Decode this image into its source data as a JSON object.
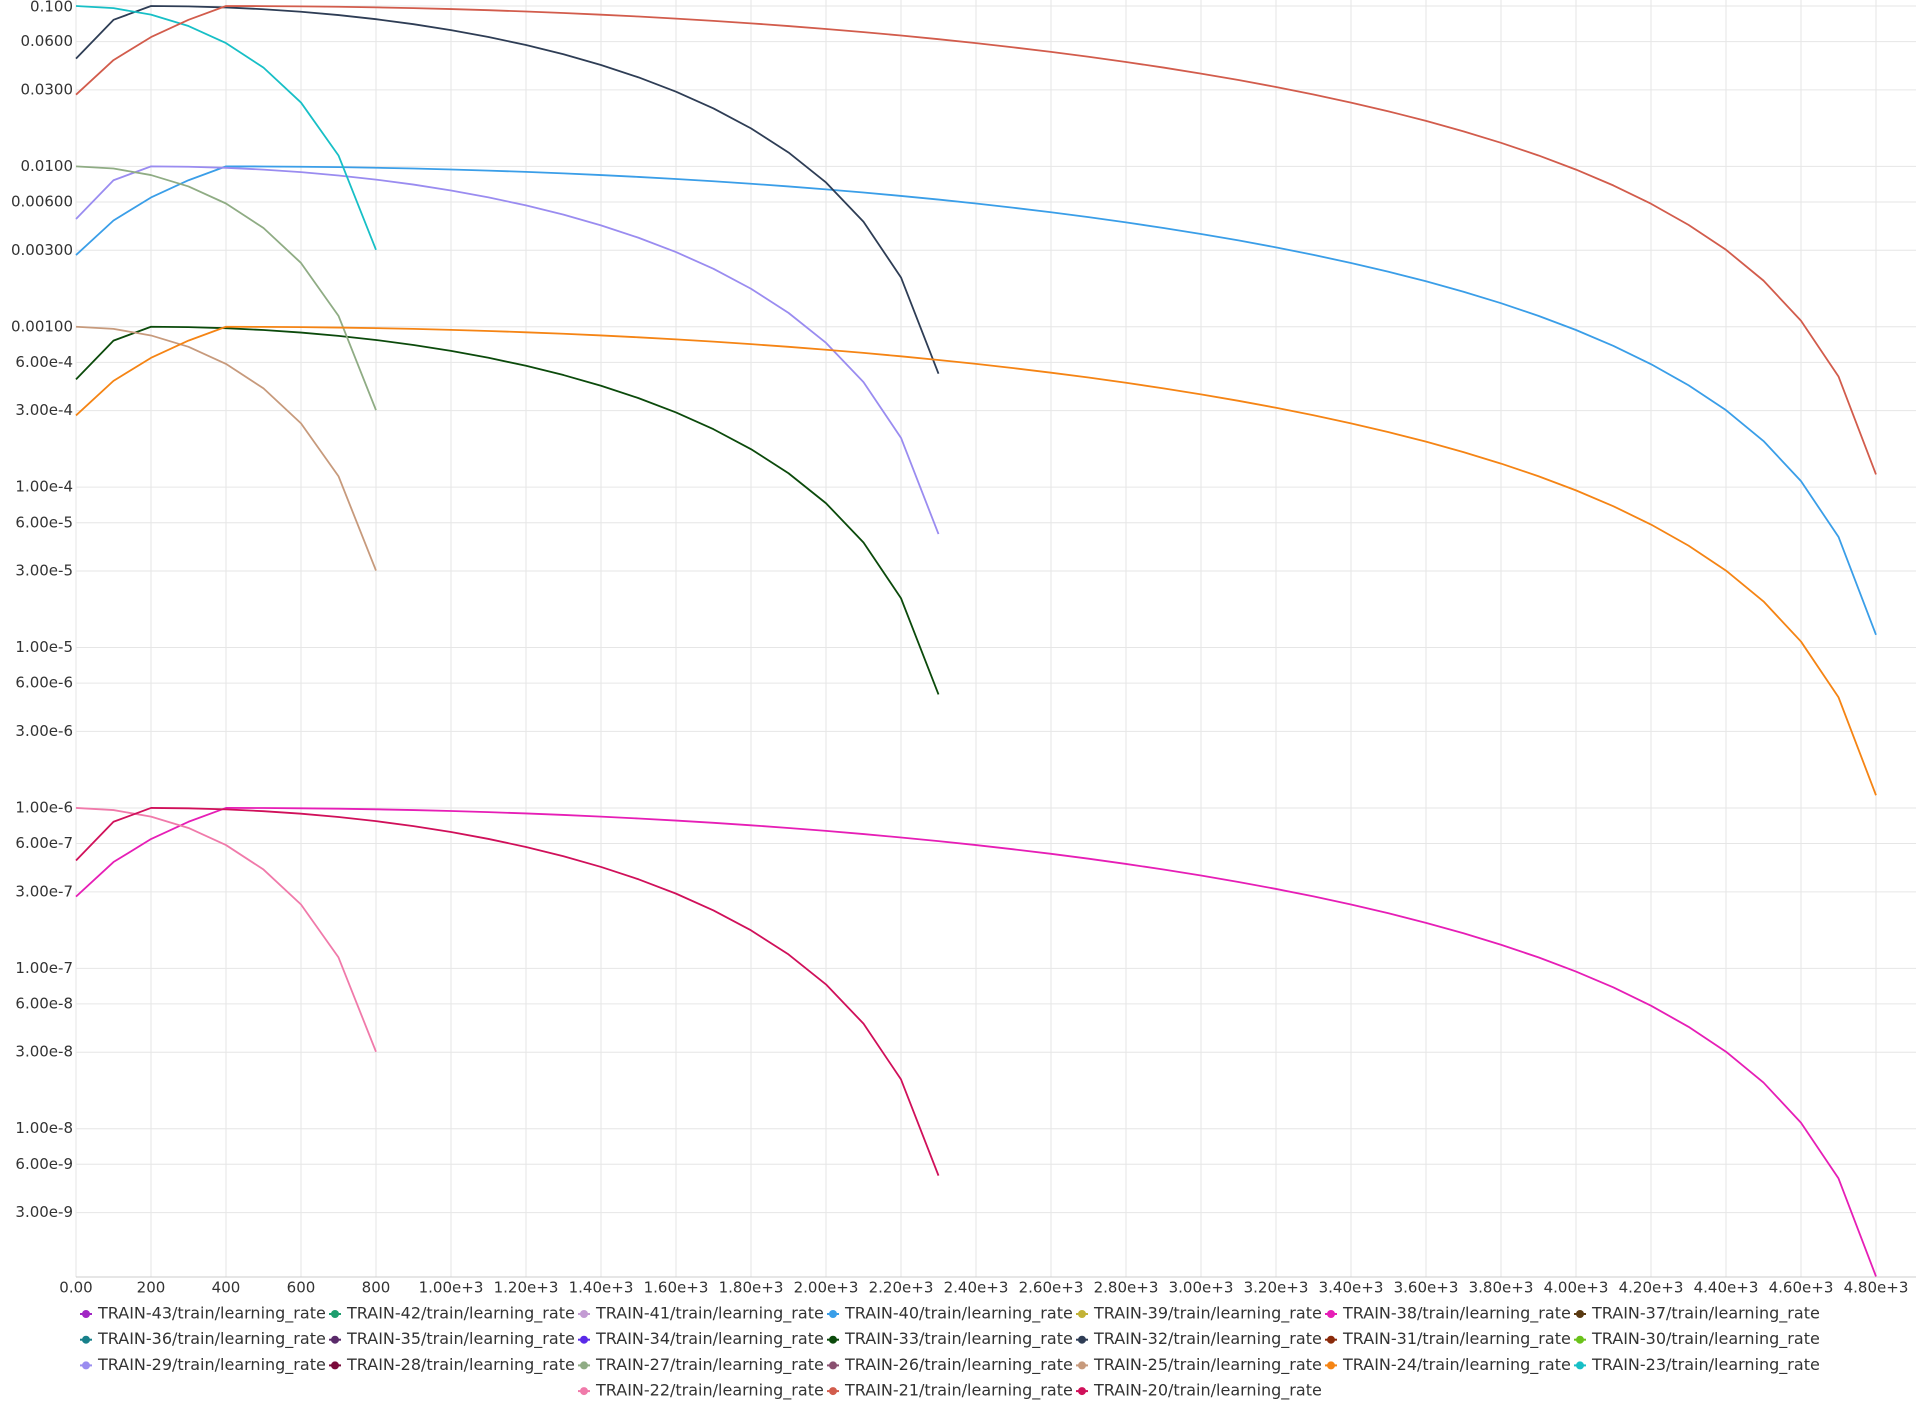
{
  "chart_data": {
    "type": "line",
    "log_y": true,
    "grid": true,
    "legend_position": "bottom",
    "xlim": [
      0,
      4800
    ],
    "ylim": [
      1.19e-09,
      0.109
    ],
    "xticks": [
      {
        "value": 0,
        "label": "0.00"
      },
      200,
      400,
      600,
      800,
      {
        "value": 1000,
        "label": "1.00e+3"
      },
      {
        "value": 1200,
        "label": "1.20e+3"
      },
      {
        "value": 1400,
        "label": "1.40e+3"
      },
      {
        "value": 1600,
        "label": "1.60e+3"
      },
      {
        "value": 1800,
        "label": "1.80e+3"
      },
      {
        "value": 2000,
        "label": "2.00e+3"
      },
      {
        "value": 2200,
        "label": "2.20e+3"
      },
      {
        "value": 2400,
        "label": "2.40e+3"
      },
      {
        "value": 2600,
        "label": "2.60e+3"
      },
      {
        "value": 2800,
        "label": "2.80e+3"
      },
      {
        "value": 3000,
        "label": "3.00e+3"
      },
      {
        "value": 3200,
        "label": "3.20e+3"
      },
      {
        "value": 3400,
        "label": "3.40e+3"
      },
      {
        "value": 3600,
        "label": "3.60e+3"
      },
      {
        "value": 3800,
        "label": "3.80e+3"
      },
      {
        "value": 4000,
        "label": "4.00e+3"
      },
      {
        "value": 4200,
        "label": "4.20e+3"
      },
      {
        "value": 4400,
        "label": "4.40e+3"
      },
      {
        "value": 4600,
        "label": "4.60e+3"
      },
      {
        "value": 4800,
        "label": "4.80e+3"
      }
    ],
    "yticks": [
      {
        "value": 0.1,
        "label": "0.100"
      },
      {
        "value": 0.06,
        "label": "0.0600"
      },
      {
        "value": 0.03,
        "label": "0.0300"
      },
      {
        "value": 0.01,
        "label": "0.0100"
      },
      {
        "value": 0.006,
        "label": "0.00600"
      },
      {
        "value": 0.003,
        "label": "0.00300"
      },
      {
        "value": 0.001,
        "label": "0.00100"
      },
      {
        "value": 0.0006,
        "label": "6.00e-4"
      },
      {
        "value": 0.0003,
        "label": "3.00e-4"
      },
      {
        "value": 0.0001,
        "label": "1.00e-4"
      },
      {
        "value": 6e-05,
        "label": "6.00e-5"
      },
      {
        "value": 3e-05,
        "label": "3.00e-5"
      },
      {
        "value": 1e-05,
        "label": "1.00e-5"
      },
      {
        "value": 6e-06,
        "label": "6.00e-6"
      },
      {
        "value": 3e-06,
        "label": "3.00e-6"
      },
      {
        "value": 1e-06,
        "label": "1.00e-6"
      },
      {
        "value": 6e-07,
        "label": "6.00e-7"
      },
      {
        "value": 3e-07,
        "label": "3.00e-7"
      },
      {
        "value": 1e-07,
        "label": "1.00e-7"
      },
      {
        "value": 6e-08,
        "label": "6.00e-8"
      },
      {
        "value": 3e-08,
        "label": "3.00e-8"
      },
      {
        "value": 1e-08,
        "label": "1.00e-8"
      },
      {
        "value": 6e-09,
        "label": "6.00e-9"
      },
      {
        "value": 3e-09,
        "label": "3.00e-9"
      }
    ],
    "series": [
      {
        "name": "TRAIN-43/train/learning_rate",
        "color": "#a126c4",
        "x": [],
        "values": []
      },
      {
        "name": "TRAIN-42/train/learning_rate",
        "color": "#1e9e6e",
        "x": [],
        "values": []
      },
      {
        "name": "TRAIN-41/train/learning_rate",
        "color": "#c39bd3",
        "x": [],
        "values": []
      },
      {
        "name": "TRAIN-40/train/learning_rate",
        "color": "#3a9ee8",
        "x": [
          0,
          100,
          200,
          300,
          400,
          500,
          600,
          700,
          800,
          900,
          1000,
          1100,
          1200,
          1300,
          1400,
          1500,
          1600,
          1700,
          1800,
          1900,
          2000,
          2100,
          2200,
          2300,
          2400,
          2500,
          2600,
          2700,
          2800,
          2900,
          3000,
          3100,
          3200,
          3300,
          3400,
          3500,
          3600,
          3700,
          3800,
          3900,
          4000,
          4100,
          4200,
          4300,
          4400,
          4500,
          4600,
          4700,
          4800
        ],
        "values": [
          0.0028,
          0.0046,
          0.0064,
          0.0082,
          0.01,
          0.009988,
          0.009951,
          0.009891,
          0.009806,
          0.009699,
          0.009568,
          0.009415,
          0.00924,
          0.009045,
          0.00883,
          0.008597,
          0.008346,
          0.008078,
          0.007796,
          0.0075,
          0.007192,
          0.006873,
          0.006545,
          0.00621,
          0.005868,
          0.005523,
          0.005175,
          0.004826,
          0.004477,
          0.004132,
          0.00379,
          0.003455,
          0.003127,
          0.002808,
          0.0025,
          0.002204,
          0.001922,
          0.001654,
          0.001403,
          0.00117,
          0.000955,
          0.00076,
          0.000585,
          0.000432,
          0.000302,
          0.000194,
          0.000109,
          4.9e-05,
          1.2e-05
        ]
      },
      {
        "name": "TRAIN-39/train/learning_rate",
        "color": "#c2b236",
        "x": [],
        "values": []
      },
      {
        "name": "TRAIN-38/train/learning_rate",
        "color": "#e61eb6",
        "x": [
          0,
          100,
          200,
          300,
          400,
          500,
          600,
          700,
          800,
          900,
          1000,
          1100,
          1200,
          1300,
          1400,
          1500,
          1600,
          1700,
          1800,
          1900,
          2000,
          2100,
          2200,
          2300,
          2400,
          2500,
          2600,
          2700,
          2800,
          2900,
          3000,
          3100,
          3200,
          3300,
          3400,
          3500,
          3600,
          3700,
          3800,
          3900,
          4000,
          4100,
          4200,
          4300,
          4400,
          4500,
          4600,
          4700,
          4800
        ],
        "values": [
          2.8e-07,
          4.6e-07,
          6.4e-07,
          8.2e-07,
          1e-06,
          9.988e-07,
          9.951e-07,
          9.891e-07,
          9.806e-07,
          9.699e-07,
          9.568e-07,
          9.415e-07,
          9.24e-07,
          9.045e-07,
          8.83e-07,
          8.597e-07,
          8.346e-07,
          8.078e-07,
          7.796e-07,
          7.5e-07,
          7.192e-07,
          6.873e-07,
          6.545e-07,
          6.21e-07,
          5.868e-07,
          5.523e-07,
          5.175e-07,
          4.826e-07,
          4.477e-07,
          4.132e-07,
          3.79e-07,
          3.455e-07,
          3.127e-07,
          2.808e-07,
          2.5e-07,
          2.204e-07,
          1.922e-07,
          1.654e-07,
          1.403e-07,
          1.17e-07,
          9.55e-08,
          7.6e-08,
          5.85e-08,
          4.32e-08,
          3.02e-08,
          1.94e-08,
          1.09e-08,
          4.9e-09,
          1.2e-09
        ]
      },
      {
        "name": "TRAIN-37/train/learning_rate",
        "color": "#5a3a12",
        "x": [],
        "values": []
      },
      {
        "name": "TRAIN-36/train/learning_rate",
        "color": "#17808a",
        "x": [],
        "values": []
      },
      {
        "name": "TRAIN-35/train/learning_rate",
        "color": "#5a2a6a",
        "x": [],
        "values": []
      },
      {
        "name": "TRAIN-34/train/learning_rate",
        "color": "#5a2ae8",
        "x": [],
        "values": []
      },
      {
        "name": "TRAIN-33/train/learning_rate",
        "color": "#0b4a0b",
        "x": [
          0,
          100,
          200,
          300,
          400,
          500,
          600,
          700,
          800,
          900,
          1000,
          1100,
          1200,
          1300,
          1400,
          1500,
          1600,
          1700,
          1800,
          1900,
          2000,
          2100,
          2200,
          2300
        ],
        "values": [
          0.00047,
          0.00082,
          0.001,
          0.0009949,
          0.0009797,
          0.0009548,
          0.0009206,
          0.0008779,
          0.0008274,
          0.0007703,
          0.0007077,
          0.0006409,
          0.0005712,
          0.0005,
          0.0004288,
          0.0003591,
          0.0002923,
          0.0002297,
          0.0001726,
          0.0001221,
          7.94e-05,
          4.52e-05,
          2.03e-05,
          5.1e-06
        ]
      },
      {
        "name": "TRAIN-32/train/learning_rate",
        "color": "#2e3d55",
        "x": [
          0,
          100,
          200,
          300,
          400,
          500,
          600,
          700,
          800,
          900,
          1000,
          1100,
          1200,
          1300,
          1400,
          1500,
          1600,
          1700,
          1800,
          1900,
          2000,
          2100,
          2200,
          2300
        ],
        "values": [
          0.047,
          0.082,
          0.1,
          0.09949,
          0.09797,
          0.09548,
          0.09206,
          0.08779,
          0.08274,
          0.07703,
          0.07077,
          0.06409,
          0.05712,
          0.05,
          0.04288,
          0.03591,
          0.02923,
          0.02297,
          0.01726,
          0.01221,
          0.00794,
          0.00452,
          0.00203,
          0.00051
        ]
      },
      {
        "name": "TRAIN-31/train/learning_rate",
        "color": "#8a2a0a",
        "x": [],
        "values": []
      },
      {
        "name": "TRAIN-30/train/learning_rate",
        "color": "#6ac21a",
        "x": [],
        "values": []
      },
      {
        "name": "TRAIN-29/train/learning_rate",
        "color": "#9a8cf0",
        "x": [
          0,
          100,
          200,
          300,
          400,
          500,
          600,
          700,
          800,
          900,
          1000,
          1100,
          1200,
          1300,
          1400,
          1500,
          1600,
          1700,
          1800,
          1900,
          2000,
          2100,
          2200,
          2300
        ],
        "values": [
          0.0047,
          0.0082,
          0.01,
          0.009949,
          0.009797,
          0.009548,
          0.009206,
          0.008779,
          0.008274,
          0.007703,
          0.007077,
          0.006409,
          0.005712,
          0.005,
          0.004288,
          0.003591,
          0.002923,
          0.002297,
          0.001726,
          0.001221,
          0.000794,
          0.000452,
          0.000203,
          5.1e-05
        ]
      },
      {
        "name": "TRAIN-28/train/learning_rate",
        "color": "#7a0a3a",
        "x": [],
        "values": []
      },
      {
        "name": "TRAIN-27/train/learning_rate",
        "color": "#8fac84",
        "x": [
          0,
          100,
          200,
          300,
          400,
          500,
          600,
          700,
          800
        ],
        "values": [
          0.01,
          0.0097,
          0.00883,
          0.0075,
          0.00587,
          0.00413,
          0.0025,
          0.00117,
          0.000302
        ]
      },
      {
        "name": "TRAIN-26/train/learning_rate",
        "color": "#8a5070",
        "x": [],
        "values": []
      },
      {
        "name": "TRAIN-25/train/learning_rate",
        "color": "#c79a7c",
        "x": [
          0,
          100,
          200,
          300,
          400,
          500,
          600,
          700,
          800
        ],
        "values": [
          0.001,
          0.00097,
          0.000883,
          0.00075,
          0.000587,
          0.000413,
          0.00025,
          0.000117,
          3.02e-05
        ]
      },
      {
        "name": "TRAIN-24/train/learning_rate",
        "color": "#f58414",
        "x": [
          0,
          100,
          200,
          300,
          400,
          500,
          600,
          700,
          800,
          900,
          1000,
          1100,
          1200,
          1300,
          1400,
          1500,
          1600,
          1700,
          1800,
          1900,
          2000,
          2100,
          2200,
          2300,
          2400,
          2500,
          2600,
          2700,
          2800,
          2900,
          3000,
          3100,
          3200,
          3300,
          3400,
          3500,
          3600,
          3700,
          3800,
          3900,
          4000,
          4100,
          4200,
          4300,
          4400,
          4500,
          4600,
          4700,
          4800
        ],
        "values": [
          0.00028,
          0.00046,
          0.00064,
          0.00082,
          0.001,
          0.0009988,
          0.0009951,
          0.0009891,
          0.0009806,
          0.0009699,
          0.0009568,
          0.0009415,
          0.000924,
          0.0009045,
          0.000883,
          0.0008597,
          0.0008346,
          0.0008078,
          0.0007796,
          0.00075,
          0.0007192,
          0.0006873,
          0.0006545,
          0.000621,
          0.0005868,
          0.0005523,
          0.0005175,
          0.0004826,
          0.0004477,
          0.0004132,
          0.000379,
          0.0003455,
          0.0003127,
          0.0002808,
          0.00025,
          0.0002204,
          0.0001922,
          0.0001654,
          0.0001403,
          0.000117,
          9.55e-05,
          7.6e-05,
          5.85e-05,
          4.32e-05,
          3.02e-05,
          1.94e-05,
          1.09e-05,
          4.9e-06,
          1.2e-06
        ]
      },
      {
        "name": "TRAIN-23/train/learning_rate",
        "color": "#17bfc6",
        "x": [
          0,
          100,
          200,
          300,
          400,
          500,
          600,
          700,
          800
        ],
        "values": [
          0.1,
          0.097,
          0.0883,
          0.075,
          0.0587,
          0.0413,
          0.025,
          0.0117,
          0.00302
        ]
      },
      {
        "name": "TRAIN-22/train/learning_rate",
        "color": "#f07aaa",
        "x": [
          0,
          100,
          200,
          300,
          400,
          500,
          600,
          700,
          800
        ],
        "values": [
          1e-06,
          9.7e-07,
          8.83e-07,
          7.5e-07,
          5.87e-07,
          4.13e-07,
          2.5e-07,
          1.17e-07,
          3.02e-08
        ]
      },
      {
        "name": "TRAIN-21/train/learning_rate",
        "color": "#d25c4c",
        "x": [
          0,
          100,
          200,
          300,
          400,
          500,
          600,
          700,
          800,
          900,
          1000,
          1100,
          1200,
          1300,
          1400,
          1500,
          1600,
          1700,
          1800,
          1900,
          2000,
          2100,
          2200,
          2300,
          2400,
          2500,
          2600,
          2700,
          2800,
          2900,
          3000,
          3100,
          3200,
          3300,
          3400,
          3500,
          3600,
          3700,
          3800,
          3900,
          4000,
          4100,
          4200,
          4300,
          4400,
          4500,
          4600,
          4700,
          4800
        ],
        "values": [
          0.028,
          0.046,
          0.064,
          0.082,
          0.1,
          0.09988,
          0.09951,
          0.09891,
          0.09806,
          0.09699,
          0.09568,
          0.09415,
          0.0924,
          0.09045,
          0.0883,
          0.08597,
          0.08346,
          0.08078,
          0.07796,
          0.075,
          0.07192,
          0.06873,
          0.06545,
          0.0621,
          0.05868,
          0.05523,
          0.05175,
          0.04826,
          0.04477,
          0.04132,
          0.0379,
          0.03455,
          0.03127,
          0.02808,
          0.025,
          0.02204,
          0.01922,
          0.01654,
          0.01403,
          0.0117,
          0.00955,
          0.0076,
          0.00585,
          0.00432,
          0.00302,
          0.00194,
          0.00109,
          0.00049,
          0.00012
        ]
      },
      {
        "name": "TRAIN-20/train/learning_rate",
        "color": "#d0105a",
        "x": [
          0,
          100,
          200,
          300,
          400,
          500,
          600,
          700,
          800,
          900,
          1000,
          1100,
          1200,
          1300,
          1400,
          1500,
          1600,
          1700,
          1800,
          1900,
          2000,
          2100,
          2200,
          2300
        ],
        "values": [
          4.7e-07,
          8.2e-07,
          1e-06,
          9.949e-07,
          9.797e-07,
          9.548e-07,
          9.206e-07,
          8.779e-07,
          8.274e-07,
          7.703e-07,
          7.077e-07,
          6.409e-07,
          5.712e-07,
          5e-07,
          4.288e-07,
          3.591e-07,
          2.923e-07,
          2.297e-07,
          1.726e-07,
          1.221e-07,
          7.94e-08,
          4.52e-08,
          2.03e-08,
          5.1e-09
        ]
      }
    ]
  }
}
